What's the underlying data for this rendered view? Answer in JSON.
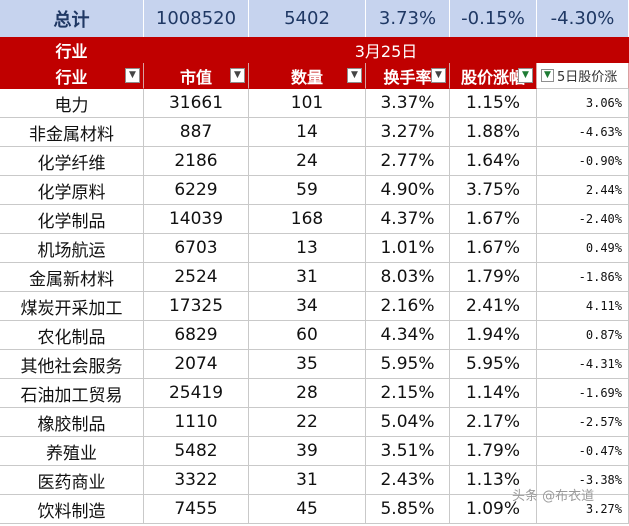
{
  "total": {
    "label": "总计",
    "market_cap": "1008520",
    "count": "5402",
    "turnover": "3.73%",
    "price_change": "-0.15%",
    "five_day_change": "-4.30%"
  },
  "header": {
    "group_label": "行业",
    "date": "3月25日",
    "columns": [
      "行业",
      "市值",
      "数量",
      "换手率",
      "股价涨幅",
      "5日股价涨"
    ]
  },
  "rows": [
    {
      "industry": "电力",
      "market_cap": "31661",
      "count": "101",
      "turnover": "3.37%",
      "change": "1.15%",
      "five_day": "3.06%"
    },
    {
      "industry": "非金属材料",
      "market_cap": "887",
      "count": "14",
      "turnover": "3.27%",
      "change": "1.88%",
      "five_day": "-4.63%"
    },
    {
      "industry": "化学纤维",
      "market_cap": "2186",
      "count": "24",
      "turnover": "2.77%",
      "change": "1.64%",
      "five_day": "-0.90%"
    },
    {
      "industry": "化学原料",
      "market_cap": "6229",
      "count": "59",
      "turnover": "4.90%",
      "change": "3.75%",
      "five_day": "2.44%"
    },
    {
      "industry": "化学制品",
      "market_cap": "14039",
      "count": "168",
      "turnover": "4.37%",
      "change": "1.67%",
      "five_day": "-2.40%"
    },
    {
      "industry": "机场航运",
      "market_cap": "6703",
      "count": "13",
      "turnover": "1.01%",
      "change": "1.67%",
      "five_day": "0.49%"
    },
    {
      "industry": "金属新材料",
      "market_cap": "2524",
      "count": "31",
      "turnover": "8.03%",
      "change": "1.79%",
      "five_day": "-1.86%"
    },
    {
      "industry": "煤炭开采加工",
      "market_cap": "17325",
      "count": "34",
      "turnover": "2.16%",
      "change": "2.41%",
      "five_day": "4.11%"
    },
    {
      "industry": "农化制品",
      "market_cap": "6829",
      "count": "60",
      "turnover": "4.34%",
      "change": "1.94%",
      "five_day": "0.87%"
    },
    {
      "industry": "其他社会服务",
      "market_cap": "2074",
      "count": "35",
      "turnover": "5.95%",
      "change": "5.95%",
      "five_day": "-4.31%"
    },
    {
      "industry": "石油加工贸易",
      "market_cap": "25419",
      "count": "28",
      "turnover": "2.15%",
      "change": "1.14%",
      "five_day": "-1.69%"
    },
    {
      "industry": "橡胶制品",
      "market_cap": "1110",
      "count": "22",
      "turnover": "5.04%",
      "change": "2.17%",
      "five_day": "-2.57%"
    },
    {
      "industry": "养殖业",
      "market_cap": "5482",
      "count": "39",
      "turnover": "3.51%",
      "change": "1.79%",
      "five_day": "-0.47%"
    },
    {
      "industry": "医药商业",
      "market_cap": "3322",
      "count": "31",
      "turnover": "2.43%",
      "change": "1.13%",
      "five_day": "-3.38%"
    },
    {
      "industry": "饮料制造",
      "market_cap": "7455",
      "count": "45",
      "turnover": "5.85%",
      "change": "1.09%",
      "five_day": "3.27%"
    }
  ],
  "filter_icons": {
    "default": "dropdown-filter-icon",
    "active": "filter-active-icon"
  },
  "watermark": "头条 @布衣道",
  "colors": {
    "header_red": "#c00000",
    "total_blue": "#c6d3ee"
  }
}
